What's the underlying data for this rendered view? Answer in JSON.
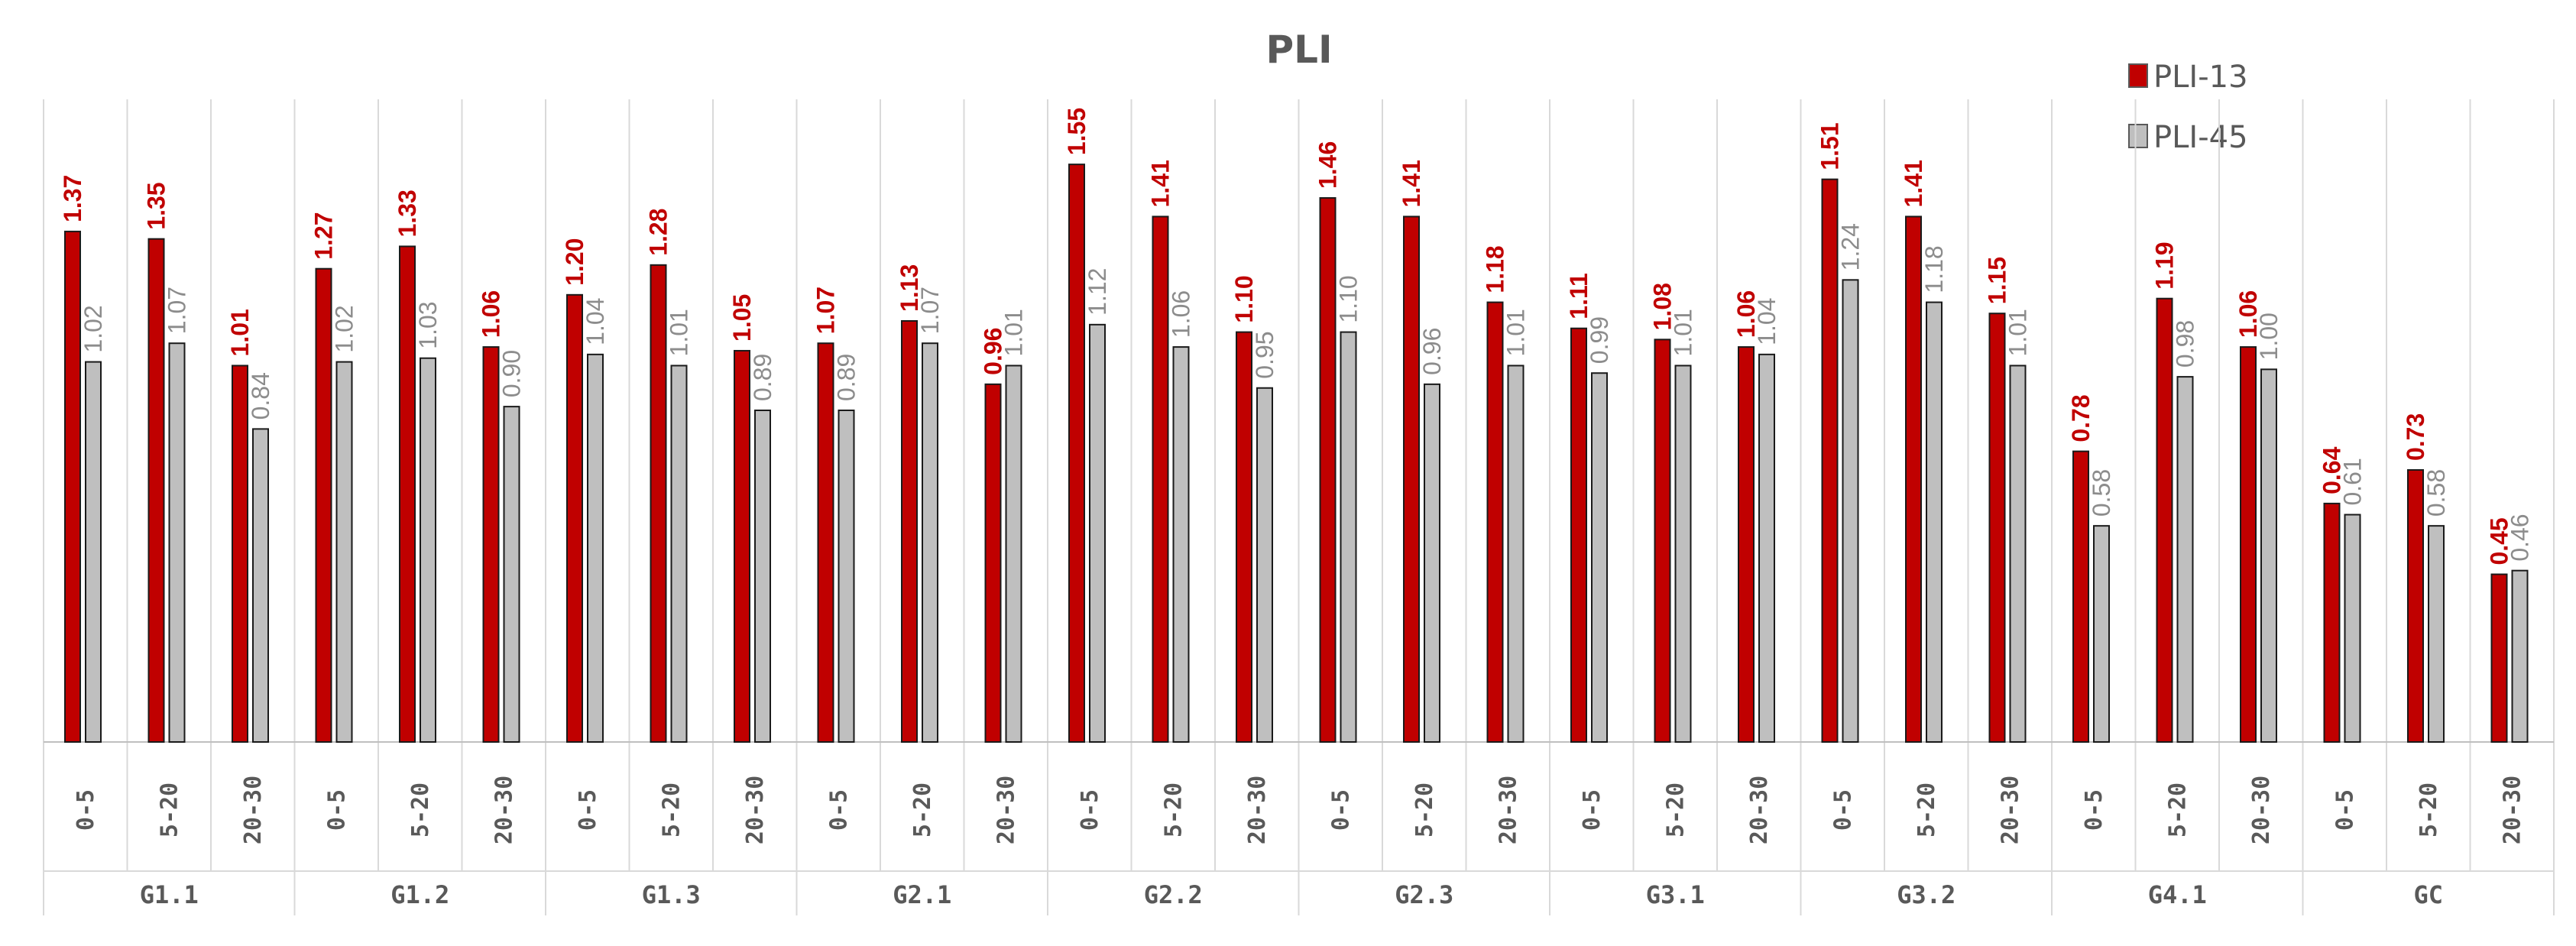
{
  "chart_data": {
    "type": "bar",
    "title": "PLI",
    "xlabel": "",
    "ylabel": "",
    "ylim": [
      0,
      1.7
    ],
    "grid": false,
    "legend": "top-right",
    "groups": [
      "G1.1",
      "G1.2",
      "G1.3",
      "G2.1",
      "G2.2",
      "G2.3",
      "G3.1",
      "G3.2",
      "G4.1",
      "GC"
    ],
    "depths": [
      "0-5",
      "5-20",
      "20-30"
    ],
    "series": [
      {
        "name": "PLI-13",
        "color": "#c00000",
        "values": [
          1.37,
          1.35,
          1.01,
          1.27,
          1.33,
          1.06,
          1.2,
          1.28,
          1.05,
          1.07,
          1.13,
          0.96,
          1.55,
          1.41,
          1.1,
          1.46,
          1.41,
          1.18,
          1.11,
          1.08,
          1.06,
          1.51,
          1.41,
          1.15,
          0.78,
          1.19,
          1.06,
          0.64,
          0.73,
          0.45
        ],
        "labels": [
          "1.37",
          "1.35",
          "1.01",
          "1.27",
          "1.33",
          "1.06",
          "1.20",
          "1.28",
          "1.05",
          "1.07",
          "1.13",
          "0.96",
          "1.55",
          "1.41",
          "1.10",
          "1.46",
          "1.41",
          "1.18",
          "1.11",
          "1.08",
          "1.06",
          "1.51",
          "1.41",
          "1.15",
          "0.78",
          "1.19",
          "1.06",
          "0.64",
          "0.73",
          "0.45"
        ]
      },
      {
        "name": "PLI-45",
        "color": "#bfbfbf",
        "values": [
          1.02,
          1.07,
          0.84,
          1.02,
          1.03,
          0.9,
          1.04,
          1.01,
          0.89,
          0.89,
          1.07,
          1.01,
          1.12,
          1.06,
          0.95,
          1.1,
          0.96,
          1.01,
          0.99,
          1.01,
          1.04,
          1.24,
          1.18,
          1.01,
          0.58,
          0.98,
          1.0,
          0.61,
          0.58,
          0.46
        ],
        "labels": [
          "1.02",
          "1.07",
          "0.84",
          "1.02",
          "1.03",
          "0.90",
          "1.04",
          "1.01",
          "0.89",
          "0.89",
          "1.07",
          "1.01",
          "1.12",
          "1.06",
          "0.95",
          "1.10",
          "0.96",
          "1.01",
          "0.99",
          "1.01",
          "1.04",
          "1.24",
          "1.18",
          "1.01",
          "0.58",
          "0.98",
          "1.00",
          "0.61",
          "0.58",
          "0.46"
        ]
      }
    ]
  }
}
